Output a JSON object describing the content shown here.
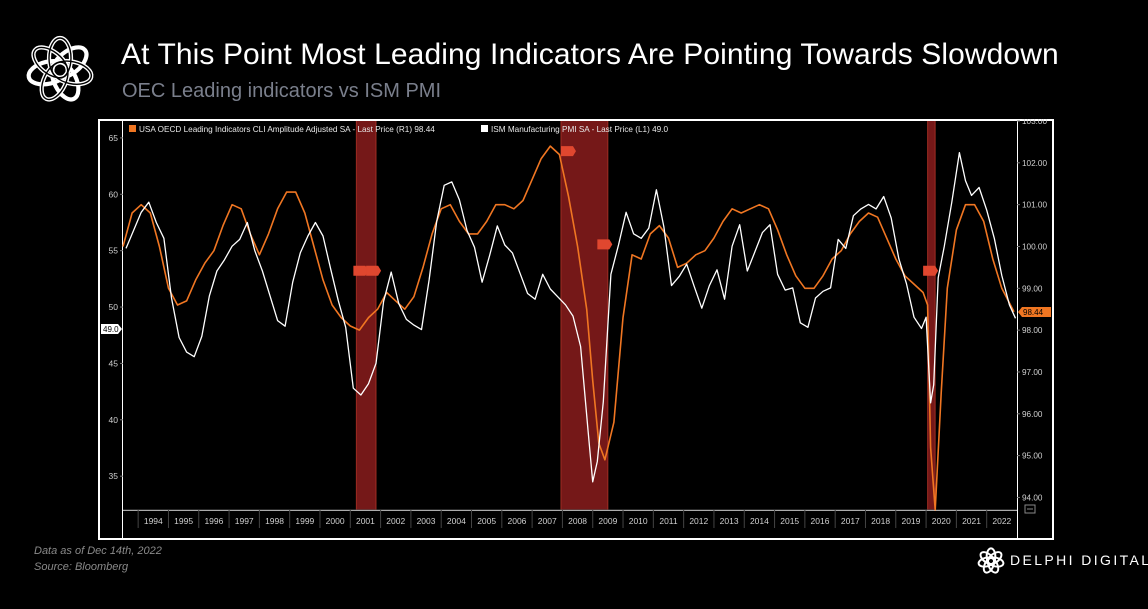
{
  "header": {
    "title": "At This Point Most Leading Indicators Are Pointing Towards Slowdown",
    "subtitle": "OEC Leading indicators vs ISM PMI"
  },
  "footer": {
    "data_note": "Data as of Dec 14th, 2022",
    "source": "Bloomberg",
    "source_prefix": "Source: ",
    "brand": "DELPHI DIGITAL"
  },
  "icons": {
    "logo": "delphi-knot-logo",
    "menu": "chart-menu-icon"
  },
  "colors": {
    "background": "#000000",
    "plot_background": "#000000",
    "cli_line": "#f07622",
    "pmi_line": "#ffffff",
    "recession": "#8a1c1c",
    "marker": "#e0472f",
    "axis_text": "#d0d0d0"
  },
  "chart_data": {
    "type": "line",
    "title": "",
    "xlabel": "",
    "ylabel_left": "",
    "ylabel_right": "",
    "x_ticks": [
      "1994",
      "1995",
      "1996",
      "1997",
      "1998",
      "1999",
      "2000",
      "2001",
      "2002",
      "2003",
      "2004",
      "2005",
      "2006",
      "2007",
      "2008",
      "2009",
      "2010",
      "2011",
      "2012",
      "2013",
      "2014",
      "2015",
      "2016",
      "2017",
      "2018",
      "2019",
      "2020",
      "2021",
      "2022"
    ],
    "x_range": [
      1993.5,
      2023.0
    ],
    "y_left": {
      "range": [
        32.0,
        66.5
      ],
      "ticks": [
        35,
        40,
        45,
        50,
        55,
        60,
        65
      ]
    },
    "y_right": {
      "range": [
        93.7,
        103.0
      ],
      "ticks": [
        "94.00",
        "95.00",
        "96.00",
        "97.00",
        "98.00",
        "99.00",
        "100.00",
        "101.00",
        "102.00",
        "103.00"
      ]
    },
    "legend_position": "top-left",
    "grid": false,
    "recessions": [
      {
        "start": 2001.2,
        "end": 2001.85
      },
      {
        "start": 2007.95,
        "end": 2009.5
      },
      {
        "start": 2020.05,
        "end": 2020.3
      }
    ],
    "recession_markers": [
      {
        "x": 2001.3,
        "y": 99.42,
        "axis": "right"
      },
      {
        "x": 2001.72,
        "y": 99.42,
        "axis": "right"
      },
      {
        "x": 2008.15,
        "y": 102.28,
        "axis": "right"
      },
      {
        "x": 2009.35,
        "y": 100.05,
        "axis": "right"
      },
      {
        "x": 2020.1,
        "y": 99.42,
        "axis": "right"
      }
    ],
    "last_labels": {
      "pmi": "49.0",
      "cli": "98.44"
    },
    "series": [
      {
        "name": "USA OECD Leading Indicators CLI Amplitude Adjusted SA - Last Price (R1) 98.44",
        "axis": "right",
        "color": "#f07622",
        "x": [
          1993.5,
          1993.8,
          1994.1,
          1994.4,
          1994.7,
          1995.0,
          1995.3,
          1995.6,
          1995.9,
          1996.2,
          1996.5,
          1996.8,
          1997.1,
          1997.4,
          1997.7,
          1998.0,
          1998.3,
          1998.6,
          1998.9,
          1999.2,
          1999.5,
          1999.8,
          2000.1,
          2000.4,
          2000.7,
          2001.0,
          2001.3,
          2001.6,
          2001.9,
          2002.2,
          2002.5,
          2002.8,
          2003.1,
          2003.4,
          2003.7,
          2004.0,
          2004.3,
          2004.6,
          2004.9,
          2005.2,
          2005.5,
          2005.8,
          2006.1,
          2006.4,
          2006.7,
          2007.0,
          2007.3,
          2007.6,
          2007.9,
          2008.2,
          2008.5,
          2008.8,
          2009.0,
          2009.2,
          2009.4,
          2009.7,
          2010.0,
          2010.3,
          2010.6,
          2010.9,
          2011.2,
          2011.5,
          2011.8,
          2012.1,
          2012.4,
          2012.7,
          2013.0,
          2013.3,
          2013.6,
          2013.9,
          2014.2,
          2014.5,
          2014.8,
          2015.1,
          2015.4,
          2015.7,
          2016.0,
          2016.3,
          2016.6,
          2016.9,
          2017.2,
          2017.5,
          2017.8,
          2018.1,
          2018.4,
          2018.7,
          2019.0,
          2019.3,
          2019.6,
          2019.9,
          2020.05,
          2020.15,
          2020.3,
          2020.5,
          2020.7,
          2021.0,
          2021.3,
          2021.6,
          2021.9,
          2022.2,
          2022.5,
          2022.9
        ],
        "values": [
          100.0,
          100.8,
          101.0,
          100.8,
          100.0,
          99.0,
          98.6,
          98.7,
          99.2,
          99.6,
          99.9,
          100.5,
          101.0,
          100.9,
          100.3,
          99.8,
          100.3,
          100.9,
          101.3,
          101.3,
          100.8,
          100.0,
          99.2,
          98.6,
          98.3,
          98.1,
          98.0,
          98.3,
          98.5,
          98.9,
          98.7,
          98.5,
          98.8,
          99.5,
          100.3,
          100.9,
          101.0,
          100.6,
          100.3,
          100.3,
          100.6,
          101.0,
          101.0,
          100.9,
          101.1,
          101.6,
          102.1,
          102.4,
          102.2,
          101.2,
          100.0,
          98.5,
          96.8,
          95.3,
          94.9,
          95.8,
          98.3,
          99.8,
          99.7,
          100.3,
          100.5,
          100.2,
          99.5,
          99.6,
          99.8,
          99.9,
          100.2,
          100.6,
          100.9,
          100.8,
          100.9,
          101.0,
          100.9,
          100.4,
          99.8,
          99.3,
          99.0,
          99.0,
          99.3,
          99.7,
          99.9,
          100.3,
          100.6,
          100.8,
          100.7,
          100.2,
          99.7,
          99.3,
          99.1,
          98.9,
          98.6,
          95.2,
          93.7,
          96.5,
          99.0,
          100.4,
          101.0,
          101.0,
          100.6,
          99.7,
          99.0,
          98.44
        ]
      },
      {
        "name": "ISM Manufacturing PMI SA - Last Price (L1) 49.0",
        "axis": "left",
        "color": "#ffffff",
        "x": [
          1993.6,
          1993.85,
          1994.1,
          1994.35,
          1994.6,
          1994.85,
          1995.1,
          1995.35,
          1995.6,
          1995.85,
          1996.1,
          1996.35,
          1996.6,
          1996.85,
          1997.1,
          1997.35,
          1997.6,
          1997.85,
          1998.1,
          1998.35,
          1998.6,
          1998.85,
          1999.1,
          1999.35,
          1999.6,
          1999.85,
          2000.1,
          2000.35,
          2000.6,
          2000.85,
          2001.1,
          2001.35,
          2001.6,
          2001.85,
          2002.1,
          2002.35,
          2002.6,
          2002.85,
          2003.1,
          2003.35,
          2003.6,
          2003.85,
          2004.1,
          2004.35,
          2004.6,
          2004.85,
          2005.1,
          2005.35,
          2005.6,
          2005.85,
          2006.1,
          2006.35,
          2006.6,
          2006.85,
          2007.1,
          2007.35,
          2007.6,
          2007.85,
          2008.1,
          2008.35,
          2008.6,
          2008.85,
          2009.0,
          2009.15,
          2009.35,
          2009.6,
          2009.85,
          2010.1,
          2010.35,
          2010.6,
          2010.85,
          2011.1,
          2011.35,
          2011.6,
          2011.85,
          2012.1,
          2012.35,
          2012.6,
          2012.85,
          2013.1,
          2013.35,
          2013.6,
          2013.85,
          2014.1,
          2014.35,
          2014.6,
          2014.85,
          2015.1,
          2015.35,
          2015.6,
          2015.85,
          2016.1,
          2016.35,
          2016.6,
          2016.85,
          2017.1,
          2017.35,
          2017.6,
          2017.85,
          2018.1,
          2018.35,
          2018.6,
          2018.85,
          2019.1,
          2019.35,
          2019.6,
          2019.85,
          2020.0,
          2020.15,
          2020.25,
          2020.4,
          2020.6,
          2020.85,
          2021.1,
          2021.3,
          2021.5,
          2021.75,
          2022.0,
          2022.25,
          2022.5,
          2022.75,
          2022.95
        ],
        "values": [
          55.2,
          56.8,
          58.4,
          59.3,
          57.5,
          56.1,
          50.8,
          47.3,
          46.0,
          45.6,
          47.4,
          51.0,
          53.2,
          54.2,
          55.4,
          56.0,
          57.5,
          55.0,
          53.2,
          51.0,
          48.8,
          48.3,
          52.2,
          54.8,
          56.3,
          57.5,
          56.3,
          53.4,
          50.6,
          48.2,
          42.8,
          42.2,
          43.2,
          45.0,
          50.5,
          53.1,
          50.3,
          48.9,
          48.4,
          48.0,
          52.4,
          57.6,
          60.8,
          61.1,
          59.5,
          56.8,
          55.3,
          52.2,
          54.6,
          57.2,
          55.5,
          54.8,
          53.0,
          51.2,
          50.7,
          52.9,
          51.6,
          50.9,
          50.2,
          49.2,
          46.5,
          38.9,
          34.5,
          36.3,
          41.6,
          52.9,
          55.5,
          58.4,
          56.5,
          56.1,
          57.0,
          60.4,
          57.1,
          51.9,
          52.7,
          53.8,
          51.8,
          49.9,
          51.9,
          53.3,
          50.7,
          55.4,
          57.3,
          53.2,
          54.9,
          56.6,
          57.3,
          52.9,
          51.5,
          51.7,
          48.6,
          48.2,
          50.8,
          51.4,
          51.7,
          56.0,
          55.2,
          58.1,
          58.7,
          59.1,
          58.7,
          59.8,
          57.9,
          54.3,
          52.1,
          49.1,
          48.1,
          49.1,
          41.5,
          43.1,
          52.6,
          55.4,
          59.3,
          63.7,
          61.2,
          59.9,
          60.6,
          58.6,
          56.1,
          52.8,
          50.2,
          49.0
        ]
      }
    ]
  }
}
